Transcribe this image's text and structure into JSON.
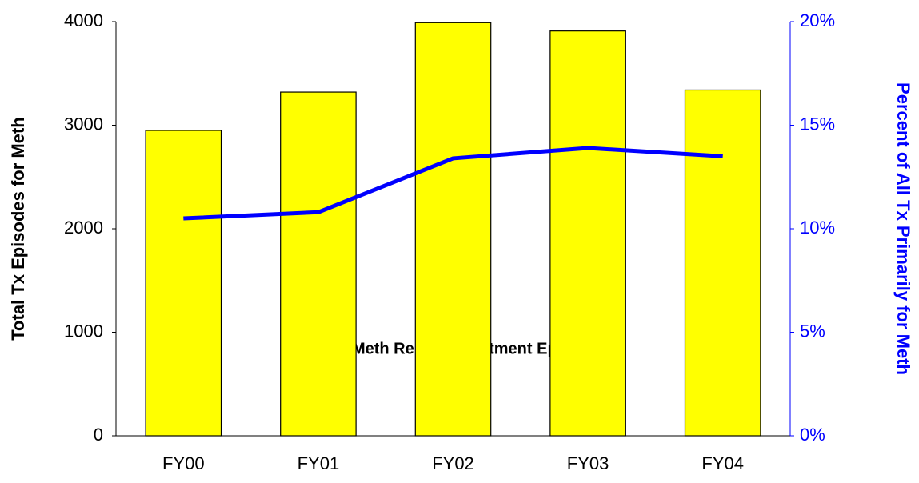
{
  "chart_data": {
    "type": "bar_line",
    "annotation": "Meth Related Treatment Episodes",
    "y_label": "Total Tx Episodes for Meth",
    "y2_label": "Percent of All Tx Primarily for Meth",
    "categories": [
      "FY00",
      "FY01",
      "FY02",
      "FY03",
      "FY04"
    ],
    "series": [
      {
        "type": "bar",
        "color": "#ffff00",
        "values": [
          2950,
          3320,
          3990,
          3910,
          3340
        ]
      },
      {
        "type": "line",
        "axis": "y2",
        "color": "#0000ff",
        "values": [
          10.5,
          10.8,
          13.4,
          13.9,
          13.5
        ]
      }
    ],
    "ylim": [
      0,
      4000
    ],
    "yticks": [
      0,
      1000,
      2000,
      3000,
      4000
    ],
    "y2lim": [
      0,
      20
    ],
    "y2ticks": [
      {
        "value": 0,
        "label": "0%"
      },
      {
        "value": 5,
        "label": "5%"
      },
      {
        "value": 10,
        "label": "10%"
      },
      {
        "value": 15,
        "label": "15%"
      },
      {
        "value": 20,
        "label": "20%"
      }
    ],
    "y2_color": "#0000ff"
  }
}
